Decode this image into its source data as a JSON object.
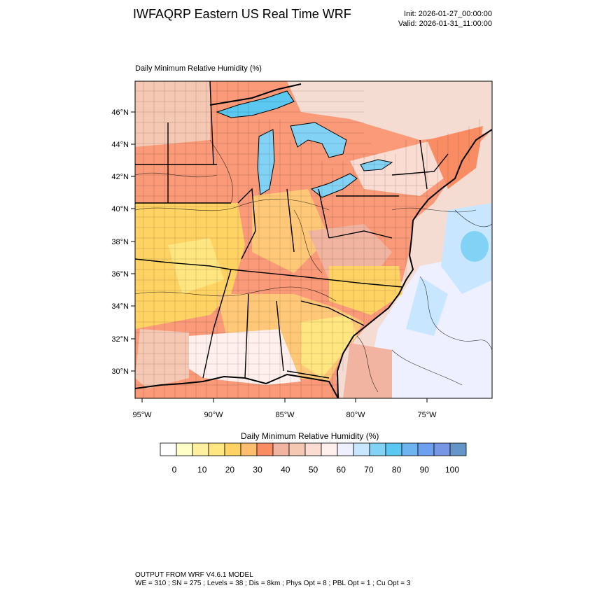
{
  "header": {
    "title": "IWFAQRP Eastern US Real Time WRF",
    "init": "Init: 2026-01-27_00:00:00",
    "valid": "Valid: 2026-01-31_11:00:00"
  },
  "map": {
    "field_label": "Daily Minimum Relative Humidity   (%)",
    "lat_labels": [
      "46°N",
      "44°N",
      "42°N",
      "40°N",
      "38°N",
      "36°N",
      "34°N",
      "32°N",
      "30°N"
    ],
    "lon_labels": [
      "95°W",
      "90°W",
      "85°W",
      "80°W",
      "75°W"
    ]
  },
  "colorbar": {
    "title": "Daily Minimum Relative Humidity  (%)",
    "colors": [
      "#ffffff",
      "#ffffc8",
      "#fff0a0",
      "#ffe680",
      "#ffd264",
      "#ffbe6e",
      "#fa8c64",
      "#f0b4a0",
      "#f5c8b4",
      "#fadcd2",
      "#fff0ee",
      "#eef0ff",
      "#c8e6ff",
      "#82d2f5",
      "#5ac8f0",
      "#6eb4f0",
      "#6ea0f0",
      "#7896e6",
      "#6496c8"
    ],
    "tick_labels": [
      "0",
      "10",
      "20",
      "30",
      "40",
      "50",
      "60",
      "70",
      "80",
      "90",
      "100"
    ]
  },
  "footer": {
    "line1": "OUTPUT FROM WRF V4.6.1 MODEL",
    "line2": "WE = 310 ; SN = 275 ; Levels = 38 ; Dis = 8km ; Phys Opt = 8 ; PBL Opt = 1 ; Cu Opt = 3"
  }
}
